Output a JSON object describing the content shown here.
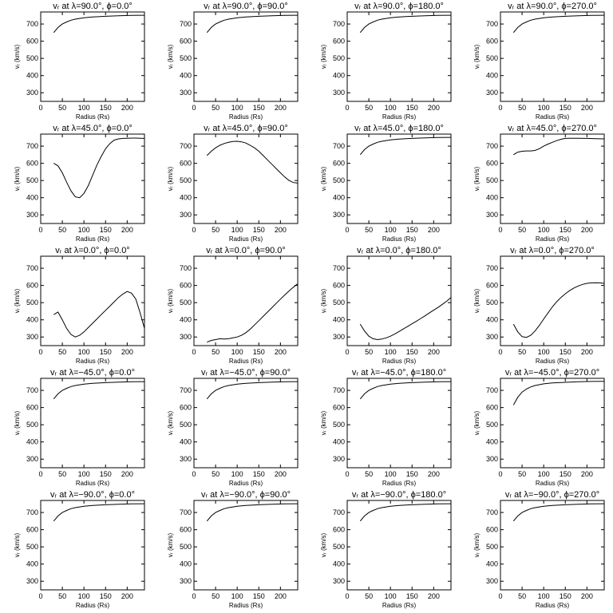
{
  "chart_data": [
    {
      "type": "line",
      "title": "vᵣ at λ=90.0°, ϕ=0.0°",
      "xlabel": "Radius (Rs)",
      "ylabel": "vᵣ (km/s)",
      "xlim": [
        0,
        240
      ],
      "ylim": [
        250,
        770
      ],
      "xticks": [
        0,
        50,
        100,
        150,
        200
      ],
      "yticks": [
        300,
        400,
        500,
        600,
        700
      ],
      "x": [
        30,
        40,
        50,
        60,
        70,
        80,
        100,
        120,
        150,
        180,
        210,
        240
      ],
      "y": [
        650,
        680,
        700,
        712,
        722,
        728,
        736,
        741,
        745,
        748,
        750,
        751
      ]
    },
    {
      "type": "line",
      "title": "vᵣ at λ=90.0°, ϕ=90.0°",
      "xlabel": "Radius (Rs)",
      "ylabel": "vᵣ (km/s)",
      "xlim": [
        0,
        240
      ],
      "ylim": [
        250,
        770
      ],
      "xticks": [
        0,
        50,
        100,
        150,
        200
      ],
      "yticks": [
        300,
        400,
        500,
        600,
        700
      ],
      "x": [
        30,
        40,
        50,
        60,
        70,
        80,
        100,
        120,
        150,
        180,
        210,
        240
      ],
      "y": [
        650,
        680,
        700,
        712,
        722,
        728,
        736,
        741,
        745,
        748,
        750,
        751
      ]
    },
    {
      "type": "line",
      "title": "vᵣ at λ=90.0°, ϕ=180.0°",
      "xlabel": "Radius (Rs)",
      "ylabel": "vᵣ (km/s)",
      "xlim": [
        0,
        240
      ],
      "ylim": [
        250,
        770
      ],
      "xticks": [
        0,
        50,
        100,
        150,
        200
      ],
      "yticks": [
        300,
        400,
        500,
        600,
        700
      ],
      "x": [
        30,
        40,
        50,
        60,
        70,
        80,
        100,
        120,
        150,
        180,
        210,
        240
      ],
      "y": [
        650,
        680,
        700,
        712,
        722,
        728,
        736,
        741,
        745,
        748,
        750,
        751
      ]
    },
    {
      "type": "line",
      "title": "vᵣ at λ=90.0°, ϕ=270.0°",
      "xlabel": "Radius (Rs)",
      "ylabel": "vᵣ (km/s)",
      "xlim": [
        0,
        240
      ],
      "ylim": [
        250,
        770
      ],
      "xticks": [
        0,
        50,
        100,
        150,
        200
      ],
      "yticks": [
        300,
        400,
        500,
        600,
        700
      ],
      "x": [
        30,
        40,
        50,
        60,
        70,
        80,
        100,
        120,
        150,
        180,
        210,
        240
      ],
      "y": [
        650,
        680,
        700,
        712,
        722,
        728,
        736,
        741,
        745,
        748,
        750,
        751
      ]
    },
    {
      "type": "line",
      "title": "vᵣ at λ=45.0°, ϕ=0.0°",
      "xlabel": "Radius (Rs)",
      "ylabel": "vᵣ (km/s)",
      "xlim": [
        0,
        240
      ],
      "ylim": [
        250,
        770
      ],
      "xticks": [
        0,
        50,
        100,
        150,
        200
      ],
      "yticks": [
        300,
        400,
        500,
        600,
        700
      ],
      "x": [
        30,
        40,
        50,
        60,
        70,
        80,
        90,
        100,
        110,
        120,
        130,
        140,
        150,
        160,
        170,
        180,
        190,
        200,
        210,
        220,
        230,
        240
      ],
      "y": [
        600,
        585,
        545,
        490,
        440,
        405,
        400,
        425,
        470,
        530,
        590,
        640,
        685,
        715,
        735,
        742,
        745,
        746,
        747,
        747,
        746,
        745
      ]
    },
    {
      "type": "line",
      "title": "vᵣ at λ=45.0°, ϕ=90.0°",
      "xlabel": "Radius (Rs)",
      "ylabel": "vᵣ (km/s)",
      "xlim": [
        0,
        240
      ],
      "ylim": [
        250,
        770
      ],
      "xticks": [
        0,
        50,
        100,
        150,
        200
      ],
      "yticks": [
        300,
        400,
        500,
        600,
        700
      ],
      "x": [
        30,
        40,
        50,
        60,
        70,
        80,
        90,
        100,
        110,
        120,
        130,
        140,
        150,
        160,
        170,
        180,
        190,
        200,
        210,
        220,
        230,
        240
      ],
      "y": [
        645,
        670,
        690,
        705,
        715,
        722,
        727,
        728,
        725,
        718,
        705,
        690,
        670,
        645,
        620,
        595,
        570,
        545,
        520,
        500,
        488,
        485
      ]
    },
    {
      "type": "line",
      "title": "vᵣ at λ=45.0°, ϕ=180.0°",
      "xlabel": "Radius (Rs)",
      "ylabel": "vᵣ (km/s)",
      "xlim": [
        0,
        240
      ],
      "ylim": [
        250,
        770
      ],
      "xticks": [
        0,
        50,
        100,
        150,
        200
      ],
      "yticks": [
        300,
        400,
        500,
        600,
        700
      ],
      "x": [
        30,
        40,
        50,
        60,
        70,
        80,
        100,
        120,
        150,
        180,
        210,
        240
      ],
      "y": [
        650,
        680,
        700,
        712,
        722,
        728,
        736,
        741,
        745,
        748,
        750,
        751
      ]
    },
    {
      "type": "line",
      "title": "vᵣ at λ=45.0°, ϕ=270.0°",
      "xlabel": "Radius (Rs)",
      "ylabel": "vᵣ (km/s)",
      "xlim": [
        0,
        240
      ],
      "ylim": [
        250,
        770
      ],
      "xticks": [
        0,
        50,
        100,
        150,
        200
      ],
      "yticks": [
        300,
        400,
        500,
        600,
        700
      ],
      "x": [
        30,
        40,
        50,
        60,
        70,
        80,
        90,
        100,
        110,
        120,
        130,
        140,
        150,
        160,
        180,
        200,
        220,
        240
      ],
      "y": [
        650,
        665,
        670,
        672,
        672,
        675,
        685,
        700,
        712,
        722,
        732,
        740,
        745,
        746,
        746,
        745,
        743,
        742
      ]
    },
    {
      "type": "line",
      "title": "vᵣ at λ=0.0°, ϕ=0.0°",
      "xlabel": "Radius (Rs)",
      "ylabel": "vᵣ (km/s)",
      "xlim": [
        0,
        240
      ],
      "ylim": [
        250,
        770
      ],
      "xticks": [
        0,
        50,
        100,
        150,
        200
      ],
      "yticks": [
        300,
        400,
        500,
        600,
        700
      ],
      "x": [
        30,
        40,
        50,
        60,
        70,
        80,
        90,
        100,
        110,
        120,
        130,
        140,
        150,
        160,
        170,
        180,
        190,
        200,
        210,
        220,
        230,
        240
      ],
      "y": [
        430,
        445,
        400,
        350,
        315,
        300,
        310,
        330,
        355,
        380,
        405,
        430,
        455,
        480,
        505,
        530,
        550,
        565,
        555,
        520,
        440,
        350
      ]
    },
    {
      "type": "line",
      "title": "vᵣ at λ=0.0°, ϕ=90.0°",
      "xlabel": "Radius (Rs)",
      "ylabel": "vᵣ (km/s)",
      "xlim": [
        0,
        240
      ],
      "ylim": [
        250,
        770
      ],
      "xticks": [
        0,
        50,
        100,
        150,
        200
      ],
      "yticks": [
        300,
        400,
        500,
        600,
        700
      ],
      "x": [
        30,
        40,
        50,
        60,
        70,
        80,
        90,
        100,
        110,
        120,
        130,
        140,
        150,
        160,
        170,
        180,
        190,
        200,
        210,
        220,
        230,
        240
      ],
      "y": [
        270,
        280,
        285,
        290,
        288,
        290,
        295,
        300,
        310,
        325,
        345,
        370,
        395,
        420,
        445,
        470,
        495,
        520,
        545,
        568,
        590,
        610
      ]
    },
    {
      "type": "line",
      "title": "vᵣ at λ=0.0°, ϕ=180.0°",
      "xlabel": "Radius (Rs)",
      "ylabel": "vᵣ (km/s)",
      "xlim": [
        0,
        240
      ],
      "ylim": [
        250,
        770
      ],
      "xticks": [
        0,
        50,
        100,
        150,
        200
      ],
      "yticks": [
        300,
        400,
        500,
        600,
        700
      ],
      "x": [
        30,
        40,
        50,
        60,
        70,
        80,
        90,
        100,
        110,
        120,
        130,
        140,
        150,
        160,
        170,
        180,
        190,
        200,
        210,
        220,
        230,
        240
      ],
      "y": [
        375,
        335,
        305,
        290,
        285,
        288,
        295,
        305,
        318,
        332,
        347,
        362,
        377,
        392,
        408,
        423,
        440,
        456,
        472,
        490,
        508,
        530
      ]
    },
    {
      "type": "line",
      "title": "vᵣ at λ=0.0°, ϕ=270.0°",
      "xlabel": "Radius (Rs)",
      "ylabel": "vᵣ (km/s)",
      "xlim": [
        0,
        240
      ],
      "ylim": [
        250,
        770
      ],
      "xticks": [
        0,
        50,
        100,
        150,
        200
      ],
      "yticks": [
        300,
        400,
        500,
        600,
        700
      ],
      "x": [
        30,
        40,
        50,
        60,
        70,
        80,
        90,
        100,
        110,
        120,
        130,
        140,
        150,
        160,
        170,
        180,
        190,
        200,
        210,
        220,
        230,
        240
      ],
      "y": [
        375,
        330,
        302,
        298,
        310,
        335,
        368,
        405,
        440,
        475,
        505,
        530,
        552,
        570,
        585,
        597,
        606,
        612,
        615,
        616,
        615,
        612
      ]
    },
    {
      "type": "line",
      "title": "vᵣ at λ=−45.0°, ϕ=0.0°",
      "xlabel": "Radius (Rs)",
      "ylabel": "vᵣ (km/s)",
      "xlim": [
        0,
        240
      ],
      "ylim": [
        250,
        770
      ],
      "xticks": [
        0,
        50,
        100,
        150,
        200
      ],
      "yticks": [
        300,
        400,
        500,
        600,
        700
      ],
      "x": [
        30,
        40,
        50,
        60,
        70,
        80,
        100,
        120,
        150,
        180,
        210,
        240
      ],
      "y": [
        650,
        680,
        700,
        712,
        722,
        728,
        736,
        741,
        745,
        748,
        750,
        751
      ]
    },
    {
      "type": "line",
      "title": "vᵣ at λ=−45.0°, ϕ=90.0°",
      "xlabel": "Radius (Rs)",
      "ylabel": "vᵣ (km/s)",
      "xlim": [
        0,
        240
      ],
      "ylim": [
        250,
        770
      ],
      "xticks": [
        0,
        50,
        100,
        150,
        200
      ],
      "yticks": [
        300,
        400,
        500,
        600,
        700
      ],
      "x": [
        30,
        40,
        50,
        60,
        70,
        80,
        100,
        120,
        150,
        180,
        210,
        240
      ],
      "y": [
        650,
        680,
        700,
        712,
        722,
        728,
        736,
        741,
        745,
        748,
        750,
        751
      ]
    },
    {
      "type": "line",
      "title": "vᵣ at λ=−45.0°, ϕ=180.0°",
      "xlabel": "Radius (Rs)",
      "ylabel": "vᵣ (km/s)",
      "xlim": [
        0,
        240
      ],
      "ylim": [
        250,
        770
      ],
      "xticks": [
        0,
        50,
        100,
        150,
        200
      ],
      "yticks": [
        300,
        400,
        500,
        600,
        700
      ],
      "x": [
        30,
        40,
        50,
        60,
        70,
        80,
        100,
        120,
        150,
        180,
        210,
        240
      ],
      "y": [
        650,
        680,
        700,
        712,
        722,
        728,
        736,
        741,
        745,
        748,
        750,
        751
      ]
    },
    {
      "type": "line",
      "title": "vᵣ at λ=−45.0°, ϕ=270.0°",
      "xlabel": "Radius (Rs)",
      "ylabel": "vᵣ (km/s)",
      "xlim": [
        0,
        240
      ],
      "ylim": [
        250,
        770
      ],
      "xticks": [
        0,
        50,
        100,
        150,
        200
      ],
      "yticks": [
        300,
        400,
        500,
        600,
        700
      ],
      "x": [
        30,
        40,
        50,
        60,
        70,
        80,
        100,
        120,
        150,
        180,
        210,
        240
      ],
      "y": [
        615,
        660,
        690,
        708,
        720,
        728,
        738,
        743,
        747,
        750,
        752,
        753
      ]
    },
    {
      "type": "line",
      "title": "vᵣ at λ=−90.0°, ϕ=0.0°",
      "xlabel": "Radius (Rs)",
      "ylabel": "vᵣ (km/s)",
      "xlim": [
        0,
        240
      ],
      "ylim": [
        250,
        770
      ],
      "xticks": [
        0,
        50,
        100,
        150,
        200
      ],
      "yticks": [
        300,
        400,
        500,
        600,
        700
      ],
      "x": [
        30,
        40,
        50,
        60,
        70,
        80,
        100,
        120,
        150,
        180,
        210,
        240
      ],
      "y": [
        650,
        680,
        700,
        712,
        722,
        728,
        736,
        741,
        745,
        748,
        750,
        751
      ]
    },
    {
      "type": "line",
      "title": "vᵣ at λ=−90.0°, ϕ=90.0°",
      "xlabel": "Radius (Rs)",
      "ylabel": "vᵣ (km/s)",
      "xlim": [
        0,
        240
      ],
      "ylim": [
        250,
        770
      ],
      "xticks": [
        0,
        50,
        100,
        150,
        200
      ],
      "yticks": [
        300,
        400,
        500,
        600,
        700
      ],
      "x": [
        30,
        40,
        50,
        60,
        70,
        80,
        100,
        120,
        150,
        180,
        210,
        240
      ],
      "y": [
        650,
        680,
        700,
        712,
        722,
        728,
        736,
        741,
        745,
        748,
        750,
        751
      ]
    },
    {
      "type": "line",
      "title": "vᵣ at λ=−90.0°, ϕ=180.0°",
      "xlabel": "Radius (Rs)",
      "ylabel": "vᵣ (km/s)",
      "xlim": [
        0,
        240
      ],
      "ylim": [
        250,
        770
      ],
      "xticks": [
        0,
        50,
        100,
        150,
        200
      ],
      "yticks": [
        300,
        400,
        500,
        600,
        700
      ],
      "x": [
        30,
        40,
        50,
        60,
        70,
        80,
        100,
        120,
        150,
        180,
        210,
        240
      ],
      "y": [
        650,
        680,
        700,
        712,
        722,
        728,
        736,
        741,
        745,
        748,
        750,
        751
      ]
    },
    {
      "type": "line",
      "title": "vᵣ at λ=−90.0°, ϕ=270.0°",
      "xlabel": "Radius (Rs)",
      "ylabel": "vᵣ (km/s)",
      "xlim": [
        0,
        240
      ],
      "ylim": [
        250,
        770
      ],
      "xticks": [
        0,
        50,
        100,
        150,
        200
      ],
      "yticks": [
        300,
        400,
        500,
        600,
        700
      ],
      "x": [
        30,
        40,
        50,
        60,
        70,
        80,
        100,
        120,
        150,
        180,
        210,
        240
      ],
      "y": [
        650,
        680,
        700,
        712,
        722,
        728,
        736,
        741,
        745,
        748,
        750,
        751
      ]
    }
  ]
}
